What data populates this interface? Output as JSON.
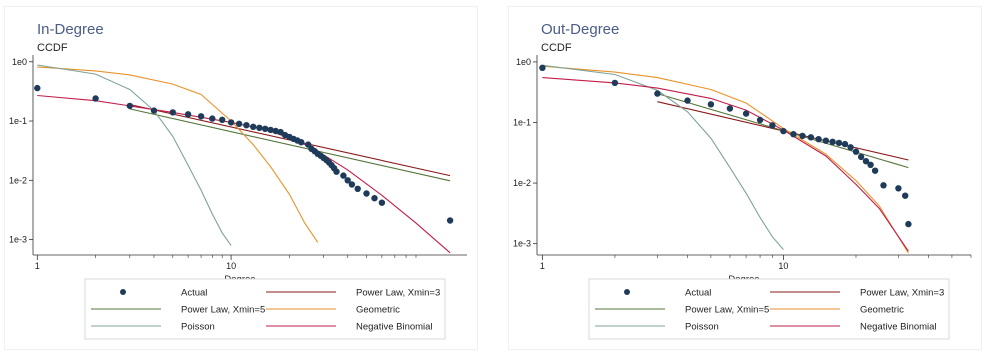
{
  "colors": {
    "actual": "#1f3b5a",
    "power_law_xmin3": "#8b1a1a",
    "power_law_xmin5": "#55753a",
    "geometric": "#e8922a",
    "poisson": "#7da39a",
    "negative_binomial": "#c21d4a"
  },
  "legend_labels": {
    "actual": "Actual",
    "power_law_xmin3": "Power Law, Xmin=3",
    "power_law_xmin5": "Power Law, Xmin=5",
    "geometric": "Geometric",
    "poisson": "Poisson",
    "negative_binomial": "Negative Binomial"
  },
  "chart_data": [
    {
      "type": "scatter",
      "title": "In-Degree",
      "subtitle": "CCDF",
      "xlabel": "Degree",
      "ylabel": "",
      "x_scale": "log",
      "y_scale": "log",
      "xlim": [
        0.95,
        165
      ],
      "ylim": [
        0.00055,
        1.3
      ],
      "x_ticks": [
        {
          "value": 1,
          "label": "1"
        },
        {
          "value": 10,
          "label": "10"
        }
      ],
      "y_ticks": [
        {
          "value": 1,
          "label": "1e0"
        },
        {
          "value": 0.1,
          "label": "1e-1"
        },
        {
          "value": 0.01,
          "label": "1e-2"
        },
        {
          "value": 0.001,
          "label": "1e-3"
        }
      ],
      "grid": false,
      "legend_position": "bottom",
      "series": [
        {
          "key": "actual",
          "kind": "points",
          "x": [
            1,
            2,
            3,
            4,
            5,
            6,
            7,
            8,
            9,
            10,
            11,
            12,
            13,
            14,
            15,
            16,
            17,
            18,
            19,
            20,
            21,
            22,
            23,
            25,
            26,
            27,
            28,
            29,
            30,
            31,
            32,
            33,
            34,
            35,
            38,
            40,
            42,
            45,
            50,
            55,
            60,
            135
          ],
          "y": [
            0.36,
            0.24,
            0.18,
            0.15,
            0.14,
            0.13,
            0.12,
            0.11,
            0.105,
            0.095,
            0.09,
            0.085,
            0.08,
            0.077,
            0.074,
            0.071,
            0.068,
            0.065,
            0.058,
            0.054,
            0.05,
            0.047,
            0.044,
            0.04,
            0.034,
            0.031,
            0.028,
            0.026,
            0.024,
            0.022,
            0.02,
            0.018,
            0.016,
            0.014,
            0.012,
            0.01,
            0.0085,
            0.0072,
            0.006,
            0.005,
            0.0042,
            0.0021
          ]
        },
        {
          "key": "power_law_xmin3",
          "kind": "line",
          "x": [
            3,
            135
          ],
          "y": [
            0.19,
            0.012
          ]
        },
        {
          "key": "power_law_xmin5",
          "kind": "line",
          "x": [
            3,
            135
          ],
          "y": [
            0.16,
            0.0098
          ]
        },
        {
          "key": "geometric",
          "kind": "line",
          "x": [
            1,
            2,
            3,
            5,
            7,
            10,
            13,
            16,
            20,
            24,
            28
          ],
          "y": [
            0.82,
            0.7,
            0.6,
            0.42,
            0.28,
            0.1,
            0.04,
            0.017,
            0.0058,
            0.0019,
            0.0009
          ]
        },
        {
          "key": "poisson",
          "kind": "line",
          "x": [
            1,
            2,
            3,
            4,
            5,
            6,
            7,
            8,
            9,
            10
          ],
          "y": [
            0.88,
            0.62,
            0.34,
            0.15,
            0.055,
            0.018,
            0.0068,
            0.0027,
            0.0013,
            0.0008
          ]
        },
        {
          "key": "negative_binomial",
          "kind": "line",
          "x": [
            1,
            2,
            3,
            5,
            10,
            15,
            20,
            25,
            30,
            40,
            60,
            90,
            135
          ],
          "y": [
            0.27,
            0.22,
            0.18,
            0.14,
            0.095,
            0.072,
            0.052,
            0.038,
            0.027,
            0.015,
            0.0056,
            0.0019,
            0.0006
          ]
        }
      ]
    },
    {
      "type": "scatter",
      "title": "Out-Degree",
      "subtitle": "CCDF",
      "xlabel": "Degree",
      "ylabel": "",
      "x_scale": "log",
      "y_scale": "log",
      "xlim": [
        0.95,
        60
      ],
      "ylim": [
        0.00065,
        1.3
      ],
      "x_ticks": [
        {
          "value": 1,
          "label": "1"
        },
        {
          "value": 10,
          "label": "10"
        }
      ],
      "y_ticks": [
        {
          "value": 1,
          "label": "1e0"
        },
        {
          "value": 0.1,
          "label": "1e-1"
        },
        {
          "value": 0.01,
          "label": "1e-2"
        },
        {
          "value": 0.001,
          "label": "1e-3"
        }
      ],
      "grid": false,
      "legend_position": "bottom",
      "series": [
        {
          "key": "actual",
          "kind": "points",
          "x": [
            1,
            2,
            3,
            4,
            5,
            6,
            7,
            8,
            9,
            10,
            11,
            12,
            13,
            14,
            15,
            16,
            17,
            18,
            19,
            20,
            21,
            22,
            23,
            24,
            26,
            30,
            32,
            33
          ],
          "y": [
            0.8,
            0.45,
            0.3,
            0.23,
            0.2,
            0.17,
            0.14,
            0.11,
            0.09,
            0.072,
            0.064,
            0.06,
            0.057,
            0.053,
            0.05,
            0.048,
            0.046,
            0.044,
            0.039,
            0.033,
            0.027,
            0.023,
            0.02,
            0.016,
            0.0092,
            0.0082,
            0.0062,
            0.0021
          ]
        },
        {
          "key": "power_law_xmin3",
          "kind": "line",
          "x": [
            3,
            33
          ],
          "y": [
            0.22,
            0.024
          ]
        },
        {
          "key": "power_law_xmin5",
          "kind": "line",
          "x": [
            3,
            33
          ],
          "y": [
            0.3,
            0.018
          ]
        },
        {
          "key": "geometric",
          "kind": "line",
          "x": [
            1,
            2,
            3,
            5,
            7,
            10,
            15,
            20,
            25,
            33
          ],
          "y": [
            0.85,
            0.68,
            0.55,
            0.35,
            0.21,
            0.08,
            0.03,
            0.011,
            0.0042,
            0.0007
          ]
        },
        {
          "key": "poisson",
          "kind": "line",
          "x": [
            1,
            2,
            3,
            4,
            5,
            6,
            7,
            8,
            9,
            10
          ],
          "y": [
            0.88,
            0.62,
            0.34,
            0.15,
            0.055,
            0.018,
            0.0068,
            0.0027,
            0.0013,
            0.0008
          ]
        },
        {
          "key": "negative_binomial",
          "kind": "line",
          "x": [
            1,
            2,
            3,
            5,
            7,
            10,
            15,
            20,
            25,
            33
          ],
          "y": [
            0.55,
            0.45,
            0.37,
            0.25,
            0.16,
            0.075,
            0.028,
            0.0095,
            0.0038,
            0.00075
          ]
        }
      ]
    }
  ]
}
